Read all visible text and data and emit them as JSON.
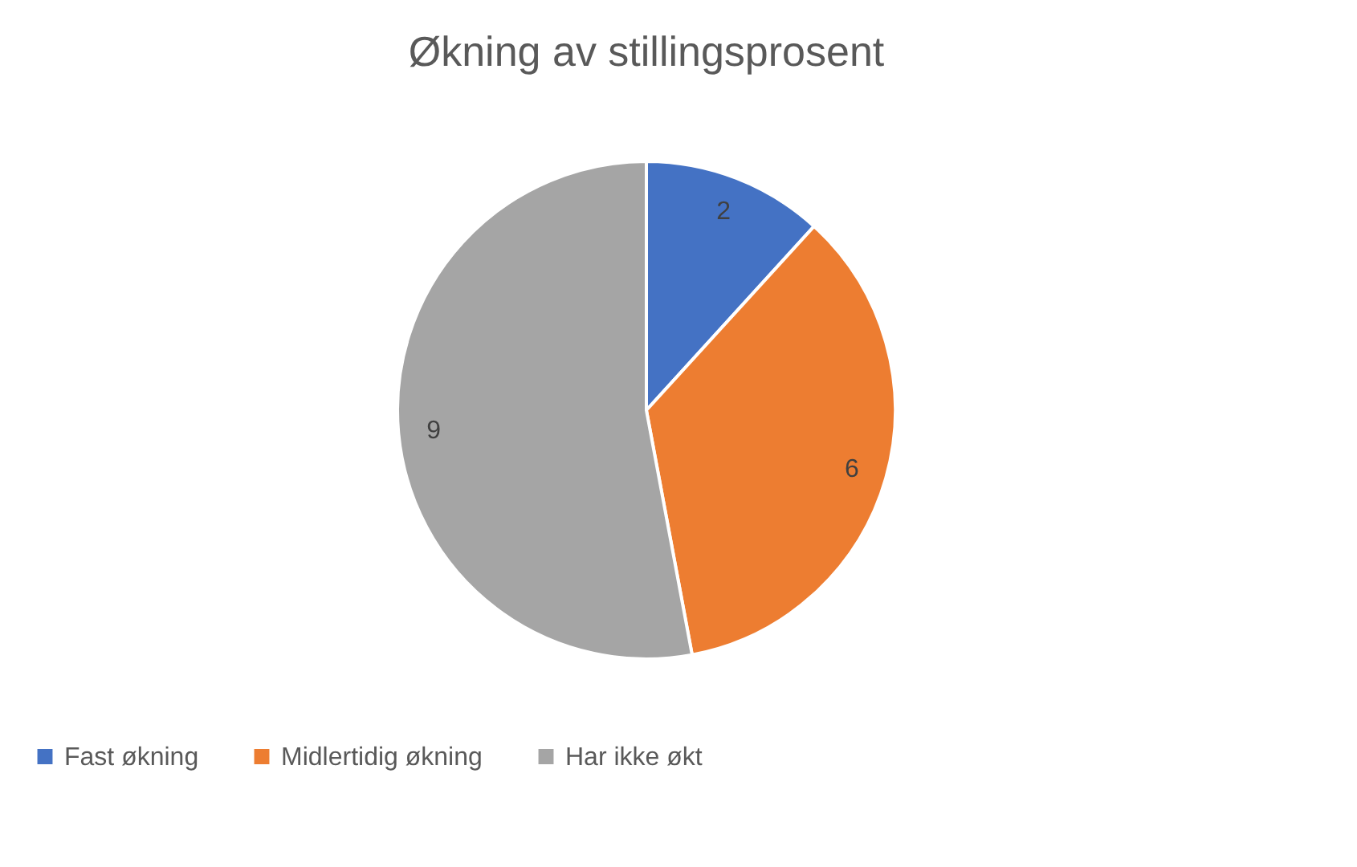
{
  "chart_data": {
    "type": "pie",
    "title": "Økning av stillingsprosent",
    "categories": [
      "Fast økning",
      "Midlertidig økning",
      "Har ikke økt"
    ],
    "values": [
      2,
      6,
      9
    ],
    "colors": [
      "#4472c4",
      "#ed7d31",
      "#a5a5a5"
    ],
    "data_labels": true,
    "legend": "bottom"
  }
}
